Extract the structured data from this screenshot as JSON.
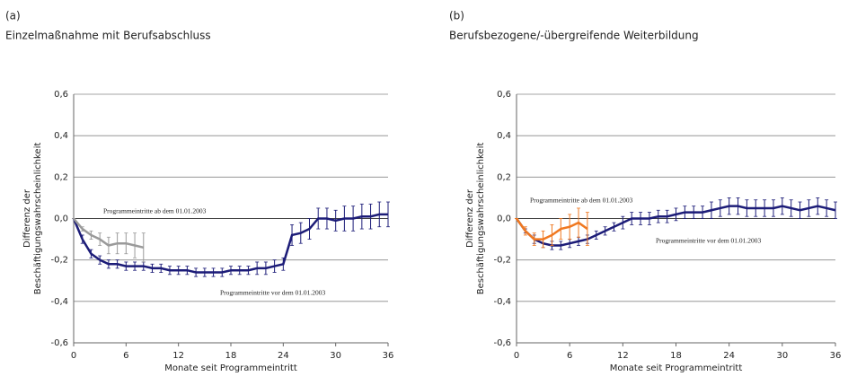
{
  "chart_data": [
    {
      "type": "line",
      "panel_label": "(a)",
      "title": "Einzelmaßnahme mit Berufsabschluss",
      "ylabel": [
        "Differenz der",
        "Beschäftigungswahrscheinlichkeit"
      ],
      "xlabel": "Monate seit Programmeintritt",
      "xlim": [
        0,
        36
      ],
      "xticks": [
        0,
        6,
        12,
        18,
        24,
        30,
        36
      ],
      "ylim": [
        -0.6,
        0.6
      ],
      "yticks": [
        {
          "value": -0.6,
          "label": "-0,6"
        },
        {
          "value": -0.4,
          "label": "-0,4"
        },
        {
          "value": -0.2,
          "label": "-0,2"
        },
        {
          "value": 0,
          "label": "0,0"
        },
        {
          "value": 0.2,
          "label": "0,2"
        },
        {
          "value": 0.4,
          "label": "0,4"
        },
        {
          "value": 0.6,
          "label": "0,6"
        }
      ],
      "grid": true,
      "annotations": [
        "Programmeintritte ab dem 01.01.2003",
        "Programmeintritte vor dem 01.01.2003"
      ],
      "series": [
        {
          "color": "#1c1c78",
          "x": [
            0,
            1,
            2,
            3,
            4,
            5,
            6,
            7,
            8,
            9,
            10,
            11,
            12,
            13,
            14,
            15,
            16,
            17,
            18,
            19,
            20,
            21,
            22,
            23,
            24,
            25,
            26,
            27,
            28,
            29,
            30,
            31,
            32,
            33,
            34,
            35,
            36
          ],
          "values": [
            0,
            -0.1,
            -0.17,
            -0.2,
            -0.22,
            -0.22,
            -0.23,
            -0.23,
            -0.23,
            -0.24,
            -0.24,
            -0.25,
            -0.25,
            -0.25,
            -0.26,
            -0.26,
            -0.26,
            -0.26,
            -0.25,
            -0.25,
            -0.25,
            -0.24,
            -0.24,
            -0.23,
            -0.22,
            -0.08,
            -0.07,
            -0.05,
            0,
            0,
            -0.01,
            0,
            0,
            0.01,
            0.01,
            0.02,
            0.02
          ],
          "errors": [
            0,
            0.02,
            0.02,
            0.02,
            0.02,
            0.02,
            0.02,
            0.02,
            0.02,
            0.02,
            0.02,
            0.02,
            0.02,
            0.02,
            0.02,
            0.02,
            0.02,
            0.02,
            0.02,
            0.02,
            0.02,
            0.03,
            0.03,
            0.03,
            0.03,
            0.05,
            0.05,
            0.05,
            0.05,
            0.05,
            0.05,
            0.06,
            0.06,
            0.06,
            0.06,
            0.06,
            0.06
          ]
        },
        {
          "color": "#9a9a9a",
          "x": [
            0,
            1,
            2,
            3,
            4,
            5,
            6,
            7,
            8
          ],
          "values": [
            0,
            -0.05,
            -0.08,
            -0.1,
            -0.13,
            -0.12,
            -0.12,
            -0.13,
            -0.14
          ],
          "errors": [
            0,
            0.01,
            0.02,
            0.03,
            0.04,
            0.05,
            0.05,
            0.06,
            0.07
          ]
        }
      ]
    },
    {
      "type": "line",
      "panel_label": "(b)",
      "title": "Berufsbezogene/-übergreifende Weiterbildung",
      "ylabel": [
        "Differenz der",
        "Beschäftigungswahrscheinlichkeit"
      ],
      "xlabel": "Monate seit Programmeintritt",
      "xlim": [
        0,
        36
      ],
      "xticks": [
        0,
        6,
        12,
        18,
        24,
        30,
        36
      ],
      "ylim": [
        -0.6,
        0.6
      ],
      "yticks": [
        {
          "value": -0.6,
          "label": "-0,6"
        },
        {
          "value": -0.4,
          "label": "-0,4"
        },
        {
          "value": -0.2,
          "label": "-0,2"
        },
        {
          "value": 0,
          "label": "0,0"
        },
        {
          "value": 0.2,
          "label": "0,2"
        },
        {
          "value": 0.4,
          "label": "0,4"
        },
        {
          "value": 0.6,
          "label": "0,6"
        }
      ],
      "grid": true,
      "annotations": [
        "Programmeintritte ab dem 01.01.2003",
        "Programmeintritte vor dem 01.01.2003"
      ],
      "series": [
        {
          "color": "#1c1c78",
          "x": [
            0,
            1,
            2,
            3,
            4,
            5,
            6,
            7,
            8,
            9,
            10,
            11,
            12,
            13,
            14,
            15,
            16,
            17,
            18,
            19,
            20,
            21,
            22,
            23,
            24,
            25,
            26,
            27,
            28,
            29,
            30,
            31,
            32,
            33,
            34,
            35,
            36
          ],
          "values": [
            0,
            -0.06,
            -0.1,
            -0.12,
            -0.13,
            -0.13,
            -0.12,
            -0.11,
            -0.1,
            -0.08,
            -0.06,
            -0.04,
            -0.02,
            0,
            0,
            0,
            0.01,
            0.01,
            0.02,
            0.03,
            0.03,
            0.03,
            0.04,
            0.05,
            0.06,
            0.06,
            0.05,
            0.05,
            0.05,
            0.05,
            0.06,
            0.05,
            0.04,
            0.05,
            0.06,
            0.05,
            0.04
          ],
          "errors": [
            0,
            0.01,
            0.02,
            0.02,
            0.02,
            0.02,
            0.02,
            0.02,
            0.02,
            0.02,
            0.02,
            0.02,
            0.03,
            0.03,
            0.03,
            0.03,
            0.03,
            0.03,
            0.03,
            0.03,
            0.03,
            0.03,
            0.04,
            0.04,
            0.04,
            0.04,
            0.04,
            0.04,
            0.04,
            0.04,
            0.04,
            0.04,
            0.04,
            0.04,
            0.04,
            0.04,
            0.04
          ]
        },
        {
          "color": "#f07820",
          "x": [
            0,
            1,
            2,
            3,
            4,
            5,
            6,
            7,
            8
          ],
          "values": [
            0,
            -0.06,
            -0.1,
            -0.1,
            -0.08,
            -0.05,
            -0.04,
            -0.02,
            -0.05
          ],
          "errors": [
            0,
            0.02,
            0.03,
            0.04,
            0.05,
            0.05,
            0.06,
            0.07,
            0.08
          ]
        }
      ]
    }
  ]
}
